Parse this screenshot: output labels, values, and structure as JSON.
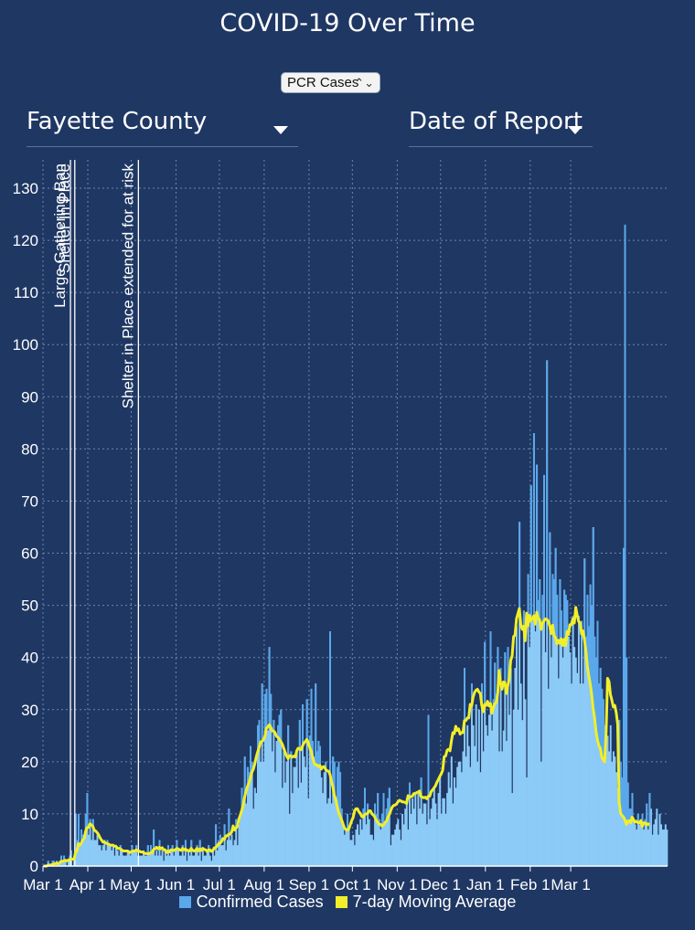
{
  "title": "COVID-19 Over Time",
  "metric_select": {
    "value": "PCR Cases",
    "arrows": "⌃⌄"
  },
  "county_dropdown": {
    "value": "Fayette County"
  },
  "date_dropdown": {
    "value": "Date of Report"
  },
  "colors": {
    "background": "#1f3763",
    "bars": "#8ccaf7",
    "bars_edge": "#5aa8ec",
    "average": "#f2ef2a",
    "grid": "#6f86ad"
  },
  "chart_data": {
    "type": "bar",
    "title": "COVID-19 Over Time",
    "xlabel": "",
    "ylabel": "",
    "ylim": [
      0,
      135
    ],
    "yticks": [
      0,
      10,
      20,
      30,
      40,
      50,
      60,
      70,
      80,
      90,
      100,
      110,
      120,
      130
    ],
    "xticks": [
      "Mar 1",
      "Apr 1",
      "May 1",
      "Jun 1",
      "Jul 1",
      "Aug 1",
      "Sep 1",
      "Oct 1",
      "Nov 1",
      "Dec 1",
      "Jan 1",
      "Feb 1",
      "Mar 1"
    ],
    "grid": true,
    "legend_placement": "bottom",
    "annotations": [
      {
        "label": "Large Gathering Ban",
        "date_index": 19
      },
      {
        "label": "Shelter In Place",
        "date_index": 22
      },
      {
        "label": "Shelter in Place extended for at risk",
        "date_index": 66
      }
    ],
    "series": [
      {
        "name": "Confirmed Cases",
        "kind": "bar",
        "values": [
          0,
          0,
          0,
          1,
          0,
          0,
          1,
          1,
          0,
          1,
          0,
          1,
          2,
          1,
          2,
          1,
          0,
          1,
          2,
          3,
          0,
          1,
          10,
          5,
          10,
          4,
          7,
          6,
          5,
          10,
          14,
          6,
          9,
          5,
          9,
          5,
          5,
          6,
          4,
          4,
          3,
          4,
          5,
          3,
          5,
          4,
          4,
          3,
          4,
          2,
          4,
          3,
          2,
          4,
          3,
          2,
          2,
          2,
          3,
          3,
          2,
          4,
          3,
          3,
          4,
          2,
          2,
          2,
          2,
          3,
          2,
          2,
          4,
          2,
          4,
          3,
          7,
          2,
          3,
          2,
          5,
          2,
          3,
          1,
          3,
          2,
          4,
          2,
          3,
          4,
          2,
          3,
          5,
          3,
          2,
          2,
          4,
          2,
          5,
          1,
          3,
          2,
          5,
          2,
          2,
          3,
          4,
          2,
          5,
          1,
          3,
          2,
          2,
          3,
          4,
          2,
          1,
          3,
          2,
          8,
          3,
          5,
          6,
          4,
          4,
          8,
          3,
          5,
          11,
          5,
          6,
          4,
          5,
          9,
          4,
          8,
          10,
          15,
          12,
          21,
          12,
          19,
          18,
          23,
          20,
          11,
          15,
          14,
          27,
          28,
          20,
          35,
          20,
          33,
          34,
          26,
          42,
          33,
          22,
          28,
          18,
          24,
          27,
          29,
          30,
          15,
          22,
          16,
          20,
          27,
          10,
          22,
          14,
          19,
          19,
          22,
          15,
          28,
          16,
          31,
          21,
          19,
          32,
          13,
          25,
          34,
          24,
          21,
          35,
          22,
          24,
          23,
          17,
          14,
          18,
          20,
          12,
          13,
          45,
          12,
          21,
          20,
          12,
          19,
          20,
          18,
          11,
          8,
          6,
          7,
          10,
          7,
          5,
          5,
          6,
          4,
          7,
          8,
          6,
          9,
          7,
          11,
          15,
          8,
          12,
          9,
          6,
          6,
          5,
          12,
          10,
          14,
          9,
          7,
          10,
          14,
          8,
          11,
          13,
          15,
          4,
          6,
          6,
          7,
          8,
          9,
          7,
          5,
          10,
          8,
          11,
          13,
          7,
          16,
          10,
          13,
          11,
          14,
          8,
          14,
          11,
          17,
          10,
          12,
          12,
          8,
          29,
          9,
          11,
          13,
          15,
          12,
          9,
          14,
          17,
          10,
          13,
          13,
          10,
          14,
          18,
          15,
          21,
          12,
          17,
          15,
          19,
          20,
          20,
          18,
          22,
          38,
          21,
          27,
          23,
          19,
          35,
          27,
          23,
          31,
          20,
          30,
          18,
          35,
          22,
          43,
          27,
          25,
          29,
          45,
          26,
          32,
          39,
          33,
          42,
          22,
          38,
          22,
          26,
          41,
          24,
          42,
          29,
          38,
          14,
          30,
          38,
          46,
          30,
          66,
          35,
          28,
          49,
          32,
          17,
          56,
          42,
          73,
          47,
          83,
          45,
          77,
          51,
          55,
          20,
          52,
          75,
          41,
          97,
          34,
          64,
          40,
          56,
          55,
          61,
          52,
          36,
          55,
          49,
          40,
          53,
          52,
          51,
          44,
          41,
          35,
          48,
          42,
          40,
          37,
          48,
          35,
          47,
          35,
          59,
          44,
          52,
          46,
          54,
          50,
          65,
          44,
          40,
          47,
          35,
          38,
          34,
          32,
          27,
          29,
          25,
          22,
          27,
          20,
          22,
          21,
          18,
          15,
          28,
          20,
          17,
          61,
          123,
          40,
          16,
          11,
          11,
          14,
          9,
          8,
          7,
          10,
          8,
          9,
          10,
          7,
          9,
          12,
          7,
          14,
          11,
          6,
          8,
          9,
          11,
          6,
          10,
          8,
          7,
          7,
          8,
          7
        ]
      },
      {
        "name": "7-day Moving Average",
        "kind": "line",
        "values": [
          0.0,
          0.0,
          0.0,
          0.2,
          0.2,
          0.2,
          0.3,
          0.4,
          0.4,
          0.6,
          0.4,
          0.6,
          0.9,
          0.9,
          1.0,
          1.1,
          1.0,
          1.1,
          1.3,
          1.4,
          1.3,
          1.3,
          2.6,
          2.9,
          4.3,
          4.0,
          4.4,
          5.0,
          5.3,
          6.7,
          7.4,
          7.4,
          8.1,
          7.9,
          7.6,
          6.9,
          6.7,
          6.4,
          6.0,
          5.4,
          5.0,
          4.6,
          4.6,
          4.4,
          4.3,
          4.2,
          4.0,
          4.0,
          4.0,
          3.8,
          3.8,
          3.4,
          3.4,
          3.3,
          3.1,
          2.9,
          2.9,
          2.9,
          2.9,
          2.7,
          2.6,
          2.8,
          2.9,
          2.9,
          3.1,
          2.9,
          2.9,
          2.7,
          2.7,
          2.6,
          2.4,
          2.4,
          2.4,
          2.3,
          2.6,
          2.6,
          3.2,
          3.3,
          3.6,
          3.3,
          3.6,
          3.3,
          3.5,
          3.1,
          3.1,
          2.6,
          2.9,
          2.7,
          3.1,
          3.1,
          3.0,
          3.1,
          3.4,
          3.3,
          3.1,
          3.0,
          3.4,
          3.1,
          3.3,
          3.0,
          3.0,
          2.9,
          3.4,
          3.0,
          2.9,
          3.0,
          3.4,
          2.9,
          3.3,
          3.0,
          3.4,
          3.2,
          3.1,
          2.8,
          3.1,
          3.1,
          2.8,
          3.0,
          3.5,
          3.5,
          3.9,
          4.3,
          4.4,
          4.7,
          5.3,
          5.1,
          5.8,
          5.8,
          6.1,
          6.1,
          6.5,
          7.7,
          6.9,
          7.3,
          7.6,
          9.0,
          9.8,
          10.7,
          11.7,
          13.3,
          14.4,
          15.3,
          16.0,
          17.0,
          18.0,
          18.6,
          19.6,
          20.9,
          21.9,
          22.7,
          23.8,
          23.9,
          24.2,
          24.9,
          26.4,
          26.7,
          27.1,
          26.7,
          25.9,
          25.9,
          25.6,
          24.9,
          24.7,
          24.3,
          23.9,
          23.4,
          22.6,
          21.8,
          21.1,
          20.6,
          21.2,
          21.1,
          20.9,
          21.1,
          20.9,
          22.1,
          22.6,
          22.5,
          22.3,
          23.0,
          23.6,
          23.9,
          24.3,
          23.7,
          22.7,
          22.1,
          20.9,
          19.8,
          19.4,
          19.4,
          19.1,
          19.3,
          18.6,
          19.0,
          19.1,
          18.5,
          18.3,
          18.2,
          17.6,
          16.3,
          15.2,
          13.6,
          12.8,
          11.4,
          10.3,
          9.6,
          8.9,
          8.1,
          7.3,
          7.0,
          6.9,
          7.1,
          7.9,
          8.7,
          9.3,
          10.6,
          11.0,
          11.0,
          10.4,
          10.1,
          9.5,
          9.4,
          9.9,
          10.0,
          10.1,
          10.6,
          10.6,
          10.0,
          9.8,
          9.4,
          8.8,
          8.4,
          8.0,
          8.0,
          7.7,
          7.9,
          8.3,
          8.6,
          9.3,
          9.9,
          10.6,
          11.3,
          11.6,
          11.7,
          11.9,
          12.3,
          12.6,
          12.5,
          12.3,
          12.3,
          12.2,
          12.0,
          13.5,
          13.2,
          13.3,
          13.4,
          13.9,
          13.9,
          14.1,
          14.2,
          14.4,
          13.3,
          13.2,
          13.1,
          13.2,
          12.9,
          13.4,
          13.4,
          14.3,
          14.6,
          15.0,
          15.4,
          16.1,
          16.6,
          17.2,
          17.7,
          18.4,
          21.0,
          21.1,
          22.2,
          22.4,
          22.1,
          24.0,
          25.6,
          25.4,
          26.8,
          26.0,
          26.3,
          25.3,
          25.6,
          25.6,
          27.9,
          27.9,
          28.4,
          28.4,
          31.0,
          30.7,
          32.4,
          33.3,
          33.7,
          33.9,
          33.4,
          33.1,
          30.8,
          29.6,
          31.0,
          30.8,
          31.6,
          30.7,
          31.2,
          29.3,
          30.4,
          31.2,
          31.4,
          33.0,
          37.5,
          35.1,
          33.9,
          35.3,
          35.2,
          33.1,
          34.6,
          36.0,
          39.4,
          40.3,
          44.0,
          44.3,
          47.4,
          48.4,
          49.4,
          46.3,
          45.4,
          46.0,
          43.2,
          48.5,
          46.1,
          48.1,
          47.1,
          47.4,
          48.0,
          46.4,
          48.7,
          47.5,
          47.3,
          45.4,
          46.6,
          47.0,
          47.4,
          47.3,
          47.0,
          46.1,
          44.6,
          46.2,
          44.2,
          43.8,
          42.6,
          43.3,
          42.7,
          43.6,
          42.3,
          43.5,
          42.3,
          45.0,
          44.4,
          46.3,
          46.3,
          47.4,
          46.6,
          49.6,
          48.1,
          46.9,
          46.7,
          44.5,
          45.1,
          43.4,
          41.3,
          38.4,
          36.5,
          34.9,
          32.9,
          30.3,
          28.4,
          25.8,
          24.2,
          23.1,
          22.6,
          21.0,
          20.3,
          20.0,
          25.6,
          36.0,
          35.4,
          32.9,
          31.8,
          30.5,
          30.8,
          29.4,
          27.2,
          12.3,
          10.1,
          9.7,
          9.4,
          8.9,
          8.0,
          8.6,
          8.7,
          8.3,
          9.4,
          8.9,
          8.4,
          8.6,
          8.3,
          8.3,
          8.7,
          7.6,
          8.3,
          8.3,
          7.9,
          8.1,
          7.9
        ]
      }
    ]
  }
}
